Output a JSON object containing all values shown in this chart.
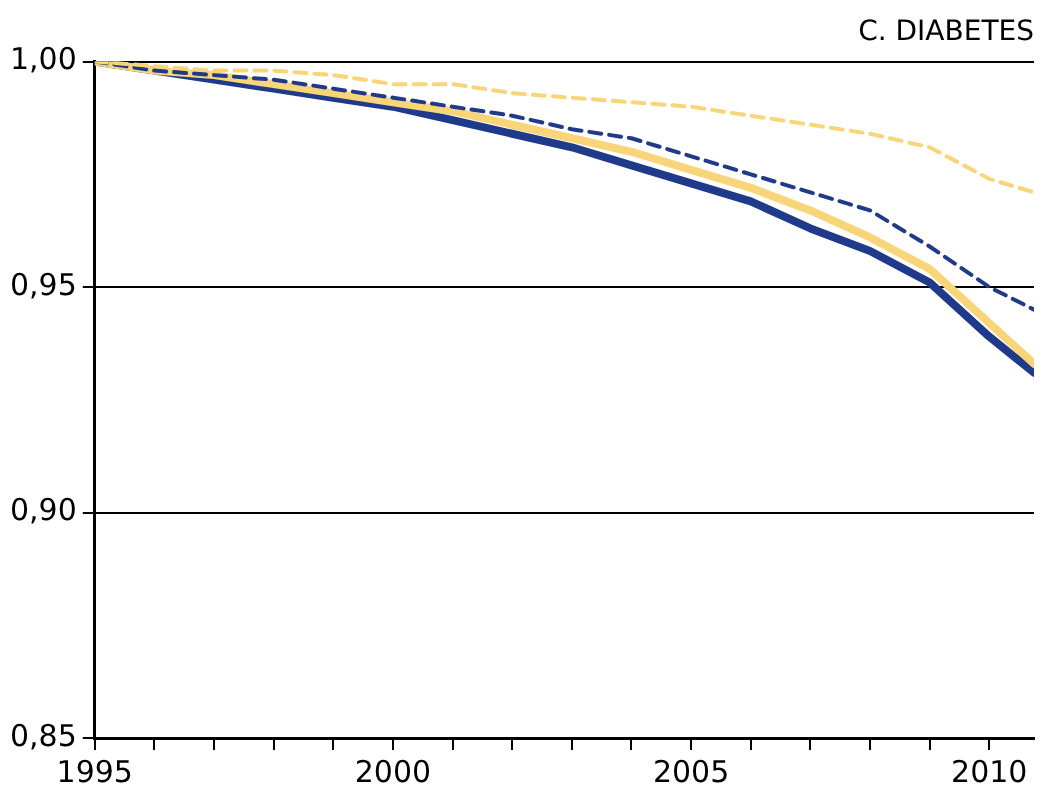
{
  "chart_data": {
    "type": "line",
    "title": "C. DIABETES",
    "x": [
      1995,
      1996,
      1997,
      1998,
      1999,
      2000,
      2001,
      2002,
      2003,
      2004,
      2005,
      2006,
      2007,
      2008,
      2009,
      2010,
      2010.75
    ],
    "series": [
      {
        "color": "#f9d57a",
        "line_style": "dashed",
        "values": [
          1.0,
          0.999,
          0.998,
          0.998,
          0.997,
          0.995,
          0.995,
          0.993,
          0.992,
          0.991,
          0.99,
          0.988,
          0.986,
          0.984,
          0.981,
          0.974,
          0.971
        ]
      },
      {
        "color": "#1f3a8a",
        "line_style": "dashed",
        "values": [
          1.0,
          0.998,
          0.997,
          0.996,
          0.994,
          0.992,
          0.99,
          0.988,
          0.985,
          0.983,
          0.979,
          0.975,
          0.971,
          0.967,
          0.959,
          0.95,
          0.945
        ]
      },
      {
        "color": "#f9d57a",
        "line_style": "solid",
        "values": [
          1.0,
          0.998,
          0.997,
          0.995,
          0.993,
          0.991,
          0.989,
          0.986,
          0.983,
          0.98,
          0.976,
          0.972,
          0.967,
          0.961,
          0.954,
          0.942,
          0.933
        ]
      },
      {
        "color": "#1f3a8a",
        "line_style": "solid",
        "values": [
          1.0,
          0.998,
          0.996,
          0.994,
          0.992,
          0.99,
          0.987,
          0.984,
          0.981,
          0.977,
          0.973,
          0.969,
          0.963,
          0.958,
          0.951,
          0.939,
          0.931
        ]
      }
    ],
    "xlim": [
      1995,
      2010.75
    ],
    "xticks": [
      1995,
      {
        "value": 1996,
        "label": null
      },
      {
        "value": 1997,
        "label": null
      },
      {
        "value": 1998,
        "label": null
      },
      {
        "value": 1999,
        "label": null
      },
      2000,
      {
        "value": 2001,
        "label": null
      },
      {
        "value": 2002,
        "label": null
      },
      {
        "value": 2003,
        "label": null
      },
      {
        "value": 2004,
        "label": null
      },
      2005,
      {
        "value": 2006,
        "label": null
      },
      {
        "value": 2007,
        "label": null
      },
      {
        "value": 2008,
        "label": null
      },
      {
        "value": 2009,
        "label": null
      },
      2010
    ],
    "ylim": [
      0.85,
      1.0
    ],
    "yticks": [
      {
        "value": 0.85,
        "label": "0,85"
      },
      {
        "value": 0.9,
        "label": "0,90"
      },
      {
        "value": 0.95,
        "label": "0,95"
      },
      {
        "value": 1.0,
        "label": "1,00"
      }
    ],
    "grid": "y",
    "legend": false
  }
}
